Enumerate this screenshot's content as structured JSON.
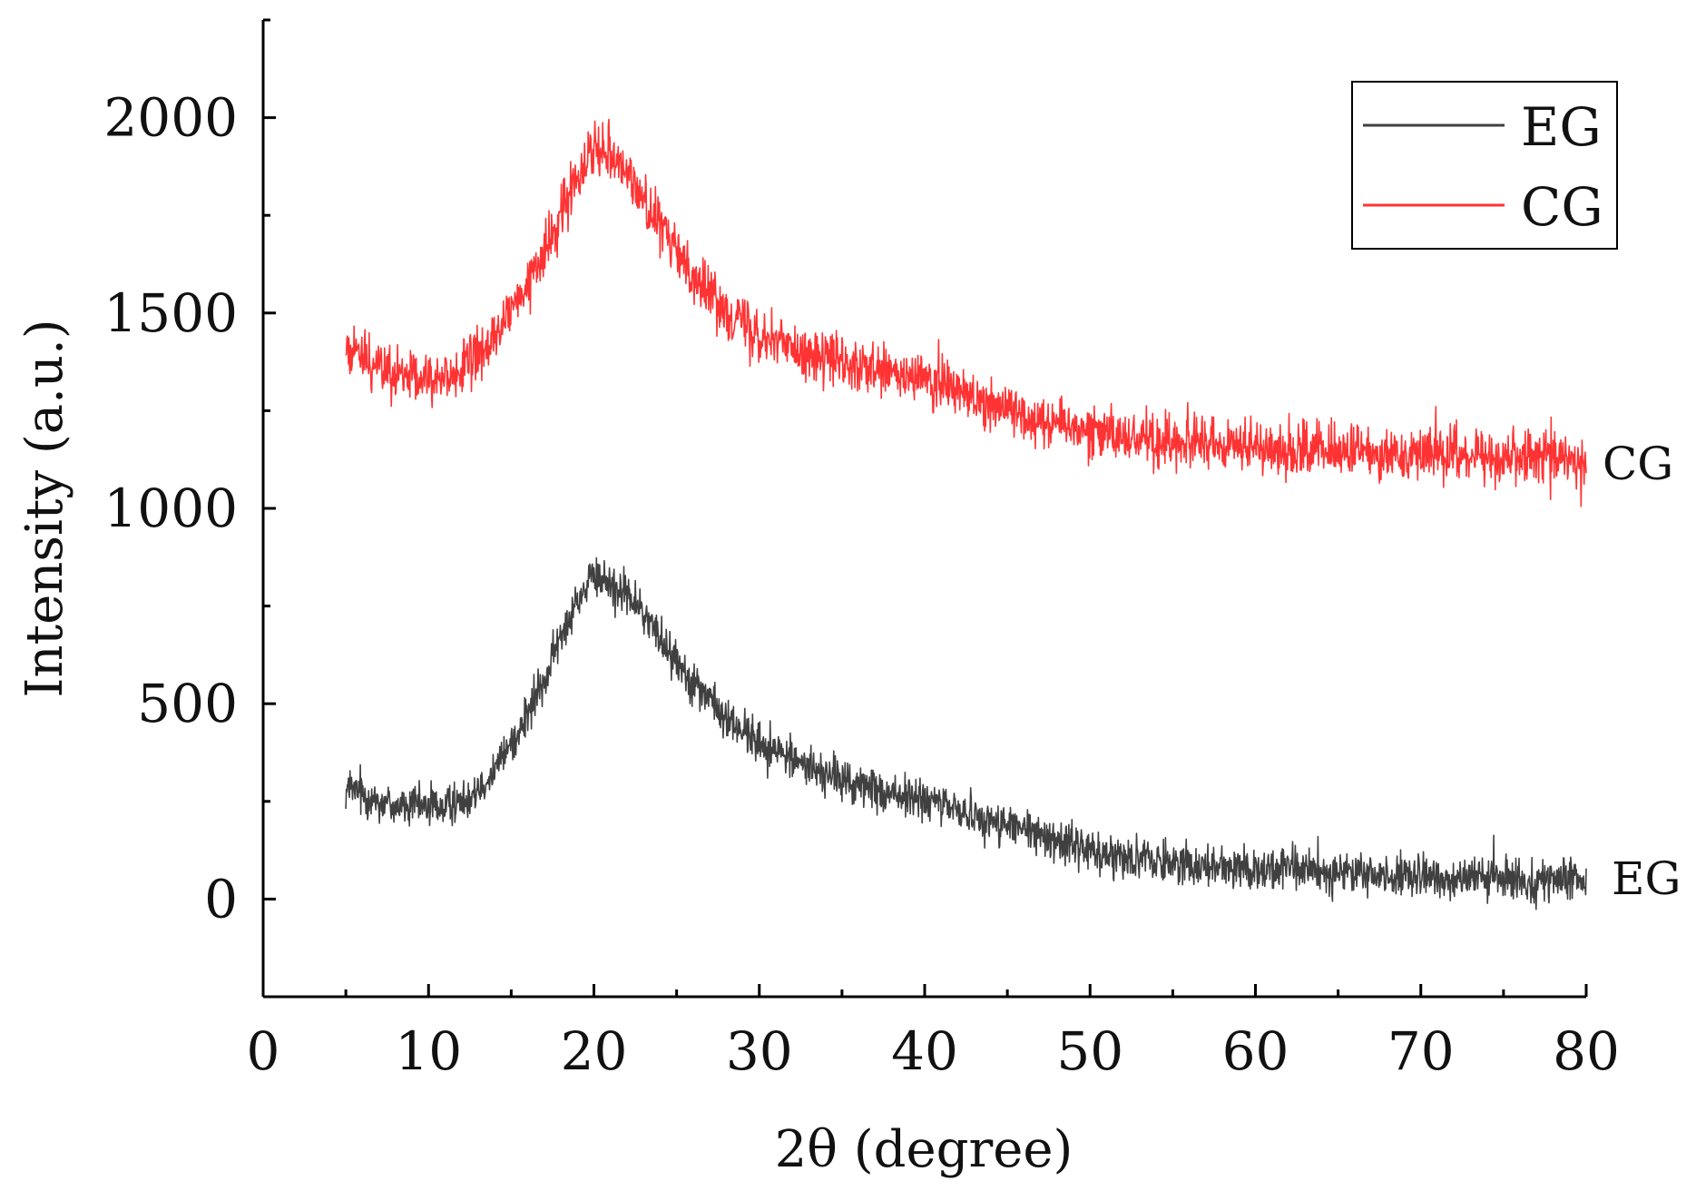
{
  "chart_data": {
    "type": "line",
    "title": "",
    "xlabel": "2θ (degree)",
    "ylabel": "Intensity (a.u.)",
    "xlim": [
      0,
      80
    ],
    "ylim": [
      -250,
      2250
    ],
    "x_ticks": [
      0,
      10,
      20,
      30,
      40,
      50,
      60,
      70,
      80
    ],
    "x_tick_labels": [
      "0",
      "10",
      "20",
      "30",
      "40",
      "50",
      "60",
      "70",
      "80"
    ],
    "y_ticks": [
      0,
      500,
      1000,
      1500,
      2000
    ],
    "y_tick_labels": [
      "0",
      "500",
      "1000",
      "1500",
      "2000"
    ],
    "grid": false,
    "legend_position": "top-right",
    "series": [
      {
        "name": "EG",
        "color": "#404040",
        "end_label": "EG",
        "noise": 40,
        "x": [
          5,
          6,
          7,
          8,
          9,
          10,
          11,
          12,
          13,
          14,
          15,
          16,
          17,
          18,
          19,
          20,
          21,
          22,
          23,
          24,
          25,
          26,
          27,
          28,
          29,
          30,
          32,
          34,
          36,
          38,
          40,
          42,
          44,
          46,
          48,
          50,
          52,
          55,
          58,
          60,
          62,
          65,
          68,
          70,
          72,
          75,
          78,
          80
        ],
        "y": [
          280,
          270,
          250,
          240,
          235,
          240,
          235,
          250,
          290,
          330,
          400,
          470,
          560,
          670,
          770,
          820,
          810,
          780,
          730,
          670,
          610,
          560,
          510,
          460,
          430,
          400,
          360,
          320,
          290,
          270,
          250,
          230,
          200,
          175,
          150,
          125,
          110,
          95,
          85,
          80,
          75,
          70,
          60,
          55,
          55,
          50,
          48,
          45
        ]
      },
      {
        "name": "CG",
        "color": "#ff3333",
        "end_label": "CG",
        "noise": 50,
        "x": [
          5,
          6,
          7,
          8,
          9,
          10,
          11,
          12,
          13,
          14,
          15,
          16,
          17,
          18,
          19,
          20,
          21,
          22,
          23,
          24,
          25,
          26,
          27,
          28,
          29,
          30,
          32,
          34,
          36,
          38,
          40,
          42,
          44,
          46,
          48,
          50,
          52,
          55,
          58,
          60,
          62,
          65,
          68,
          70,
          72,
          75,
          78,
          80
        ],
        "y": [
          1420,
          1390,
          1360,
          1340,
          1330,
          1330,
          1340,
          1350,
          1390,
          1440,
          1500,
          1570,
          1650,
          1750,
          1860,
          1930,
          1920,
          1860,
          1790,
          1720,
          1660,
          1600,
          1550,
          1510,
          1480,
          1450,
          1410,
          1380,
          1360,
          1340,
          1330,
          1300,
          1270,
          1240,
          1220,
          1200,
          1185,
          1170,
          1160,
          1155,
          1150,
          1145,
          1140,
          1138,
          1135,
          1133,
          1130,
          1128
        ]
      }
    ]
  }
}
